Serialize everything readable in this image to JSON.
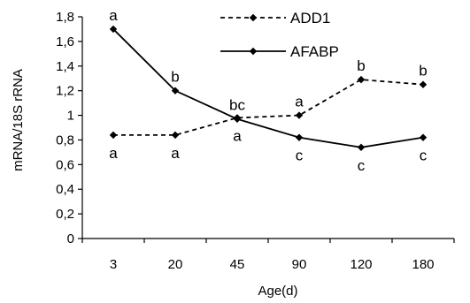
{
  "chart_data": {
    "type": "line",
    "title": "",
    "xlabel": "Age(d)",
    "ylabel": "mRNA/18S rRNA",
    "ylim": [
      0,
      1.8
    ],
    "yticks": [
      "0",
      "0,2",
      "0,4",
      "0,6",
      "0,8",
      "1",
      "1,2",
      "1,4",
      "1,6",
      "1,8"
    ],
    "categories": [
      "3",
      "20",
      "45",
      "90",
      "120",
      "180"
    ],
    "legend_position": "top-center",
    "grid": false,
    "series": [
      {
        "name": "ADD1",
        "style": "dashed",
        "marker": "diamond",
        "color": "#000000",
        "values": [
          0.84,
          0.84,
          0.98,
          1.0,
          1.29,
          1.25
        ],
        "letters": [
          "a",
          "a",
          "a",
          "a",
          "b",
          "b"
        ],
        "letter_side": [
          "below",
          "below",
          "below",
          "above",
          "above",
          "above"
        ]
      },
      {
        "name": "AFABP",
        "style": "solid",
        "marker": "diamond",
        "color": "#000000",
        "values": [
          1.7,
          1.2,
          0.97,
          0.82,
          0.74,
          0.82
        ],
        "letters": [
          "a",
          "b",
          "bc",
          "c",
          "c",
          "c"
        ],
        "letter_side": [
          "above",
          "above",
          "above",
          "below",
          "below",
          "below"
        ]
      }
    ]
  }
}
